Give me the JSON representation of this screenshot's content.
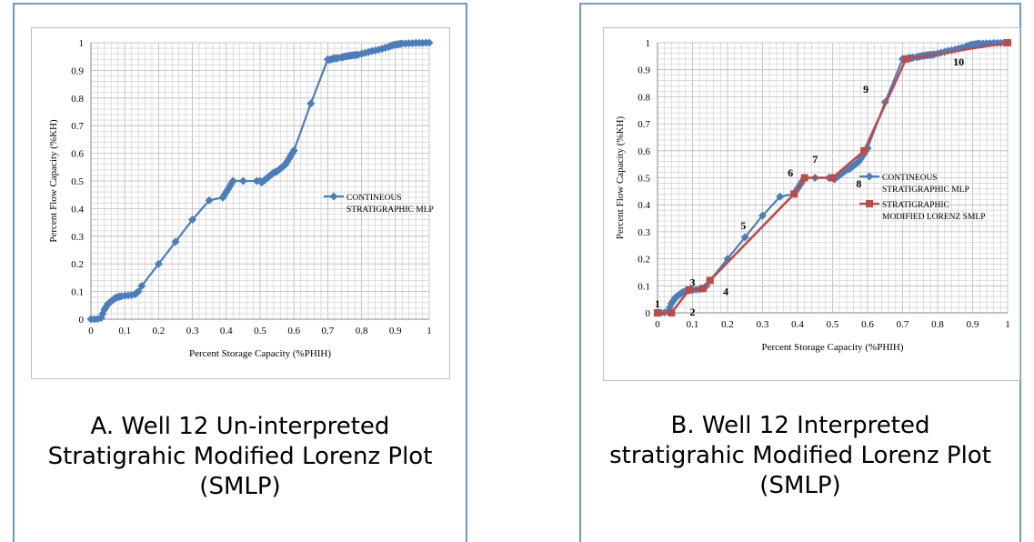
{
  "colors": {
    "frame": "#6a9bcb",
    "grid": "#c8c8c8",
    "blue_series": "#4a7ebb",
    "red_series": "#be4b48"
  },
  "panels": [
    {
      "caption_lines": [
        "A. Well 12 Un-interpreted",
        "Stratigrahic Modified Lorenz Plot",
        "(SMLP)"
      ]
    },
    {
      "caption_lines": [
        "B. Well 12 Interpreted",
        "stratigrahic Modified Lorenz Plot",
        "(SMLP)"
      ]
    }
  ],
  "chart_data": [
    {
      "type": "line",
      "xlabel": "Percent Storage Capacity (%PHIH)",
      "ylabel": "Percent Flow Capacity (%KH)",
      "xlim": [
        0,
        1
      ],
      "ylim": [
        0,
        1
      ],
      "x_ticks": [
        "0",
        "0.1",
        "0.2",
        "0.3",
        "0.4",
        "0.5",
        "0.6",
        "0.7",
        "0.8",
        "0.9",
        "1"
      ],
      "y_ticks": [
        "0",
        "0.1",
        "0.2",
        "0.3",
        "0.4",
        "0.5",
        "0.6",
        "0.7",
        "0.8",
        "0.9",
        "1"
      ],
      "grid": true,
      "legend_position": "right",
      "series": [
        {
          "name": "CONTINEOUS STRATIGRAPHIC MLP",
          "legend_lines": [
            "CONTINEOUS",
            "STRATIGRAPHIC MLP"
          ],
          "marker": "diamond",
          "x": [
            0,
            0.01,
            0.02,
            0.03,
            0.035,
            0.04,
            0.045,
            0.05,
            0.055,
            0.06,
            0.065,
            0.07,
            0.075,
            0.08,
            0.085,
            0.09,
            0.1,
            0.11,
            0.12,
            0.13,
            0.135,
            0.14,
            0.15,
            0.2,
            0.25,
            0.3,
            0.35,
            0.39,
            0.395,
            0.4,
            0.405,
            0.41,
            0.415,
            0.42,
            0.45,
            0.49,
            0.5,
            0.505,
            0.51,
            0.515,
            0.52,
            0.525,
            0.53,
            0.535,
            0.54,
            0.545,
            0.55,
            0.555,
            0.56,
            0.565,
            0.57,
            0.575,
            0.58,
            0.585,
            0.59,
            0.595,
            0.6,
            0.65,
            0.7,
            0.705,
            0.71,
            0.715,
            0.72,
            0.725,
            0.73,
            0.74,
            0.745,
            0.75,
            0.755,
            0.76,
            0.765,
            0.77,
            0.775,
            0.78,
            0.785,
            0.79,
            0.8,
            0.81,
            0.82,
            0.83,
            0.84,
            0.85,
            0.86,
            0.87,
            0.88,
            0.885,
            0.89,
            0.895,
            0.9,
            0.905,
            0.91,
            0.915,
            0.92,
            0.93,
            0.94,
            0.95,
            0.96,
            0.97,
            0.98,
            0.99,
            1.0
          ],
          "y": [
            0,
            0,
            0.001,
            0.005,
            0.02,
            0.035,
            0.045,
            0.055,
            0.06,
            0.065,
            0.07,
            0.075,
            0.078,
            0.08,
            0.082,
            0.083,
            0.085,
            0.086,
            0.087,
            0.09,
            0.095,
            0.1,
            0.12,
            0.2,
            0.28,
            0.36,
            0.43,
            0.44,
            0.45,
            0.46,
            0.47,
            0.48,
            0.49,
            0.5,
            0.5,
            0.5,
            0.5,
            0.495,
            0.5,
            0.505,
            0.51,
            0.515,
            0.52,
            0.525,
            0.53,
            0.532,
            0.535,
            0.54,
            0.545,
            0.55,
            0.555,
            0.56,
            0.57,
            0.58,
            0.59,
            0.6,
            0.61,
            0.78,
            0.94,
            0.938,
            0.94,
            0.942,
            0.944,
            0.943,
            0.945,
            0.947,
            0.948,
            0.95,
            0.951,
            0.952,
            0.953,
            0.954,
            0.955,
            0.955,
            0.956,
            0.957,
            0.96,
            0.963,
            0.966,
            0.97,
            0.972,
            0.975,
            0.978,
            0.982,
            0.985,
            0.988,
            0.99,
            0.992,
            0.993,
            0.994,
            0.995,
            0.996,
            0.997,
            0.997,
            0.998,
            0.998,
            0.999,
            0.999,
            0.999,
            1.0,
            1.0
          ],
          "color": "#4a7ebb"
        }
      ]
    },
    {
      "type": "line",
      "xlabel": "Percent Storage Capacity (%PHIH)",
      "ylabel": "Percent Flow Capacity (%KH)",
      "xlim": [
        0,
        1
      ],
      "ylim": [
        0,
        1
      ],
      "x_ticks": [
        "0",
        "0.1",
        "0.2",
        "0.3",
        "0.4",
        "0.5",
        "0.6",
        "0.7",
        "0.8",
        "0.9",
        "1"
      ],
      "y_ticks": [
        "0",
        "0.1",
        "0.2",
        "0.3",
        "0.4",
        "0.5",
        "0.6",
        "0.7",
        "0.8",
        "0.9",
        "1"
      ],
      "grid": true,
      "legend_position": "right",
      "series": [
        {
          "name": "CONTINEOUS STRATIGRAPHIC MLP",
          "legend_lines": [
            "CONTINEOUS",
            "STRATIGRAPHIC MLP"
          ],
          "marker": "diamond",
          "x": [
            0,
            0.01,
            0.02,
            0.03,
            0.035,
            0.04,
            0.045,
            0.05,
            0.055,
            0.06,
            0.065,
            0.07,
            0.075,
            0.08,
            0.085,
            0.09,
            0.1,
            0.11,
            0.12,
            0.13,
            0.135,
            0.14,
            0.15,
            0.2,
            0.25,
            0.3,
            0.35,
            0.39,
            0.395,
            0.4,
            0.405,
            0.41,
            0.415,
            0.42,
            0.45,
            0.49,
            0.5,
            0.505,
            0.51,
            0.515,
            0.52,
            0.525,
            0.53,
            0.535,
            0.54,
            0.545,
            0.55,
            0.555,
            0.56,
            0.565,
            0.57,
            0.575,
            0.58,
            0.585,
            0.59,
            0.595,
            0.6,
            0.65,
            0.7,
            0.705,
            0.71,
            0.715,
            0.72,
            0.725,
            0.73,
            0.74,
            0.745,
            0.75,
            0.755,
            0.76,
            0.765,
            0.77,
            0.775,
            0.78,
            0.785,
            0.79,
            0.8,
            0.81,
            0.82,
            0.83,
            0.84,
            0.85,
            0.86,
            0.87,
            0.88,
            0.885,
            0.89,
            0.895,
            0.9,
            0.905,
            0.91,
            0.915,
            0.92,
            0.93,
            0.94,
            0.95,
            0.96,
            0.97,
            0.98,
            0.99,
            1.0
          ],
          "y": [
            0,
            0,
            0.001,
            0.005,
            0.02,
            0.035,
            0.045,
            0.055,
            0.06,
            0.065,
            0.07,
            0.075,
            0.078,
            0.08,
            0.082,
            0.083,
            0.085,
            0.086,
            0.087,
            0.09,
            0.095,
            0.1,
            0.12,
            0.2,
            0.28,
            0.36,
            0.43,
            0.44,
            0.45,
            0.46,
            0.47,
            0.48,
            0.49,
            0.5,
            0.5,
            0.5,
            0.5,
            0.495,
            0.5,
            0.505,
            0.51,
            0.515,
            0.52,
            0.525,
            0.53,
            0.532,
            0.535,
            0.54,
            0.545,
            0.55,
            0.555,
            0.56,
            0.57,
            0.58,
            0.59,
            0.6,
            0.61,
            0.78,
            0.94,
            0.938,
            0.94,
            0.942,
            0.944,
            0.943,
            0.945,
            0.947,
            0.948,
            0.95,
            0.951,
            0.952,
            0.953,
            0.954,
            0.955,
            0.955,
            0.956,
            0.957,
            0.96,
            0.963,
            0.966,
            0.97,
            0.972,
            0.975,
            0.978,
            0.982,
            0.985,
            0.988,
            0.99,
            0.992,
            0.993,
            0.994,
            0.995,
            0.996,
            0.997,
            0.997,
            0.998,
            0.998,
            0.999,
            0.999,
            0.999,
            1.0,
            1.0
          ],
          "color": "#4a7ebb"
        },
        {
          "name": "STRATIGRAPHIC MODIFIED LORENZ SMLP",
          "legend_lines": [
            "STRATIGRAPHIC",
            "MODIFIED LORENZ SMLP"
          ],
          "marker": "square",
          "x": [
            0,
            0.04,
            0.09,
            0.13,
            0.15,
            0.39,
            0.42,
            0.5,
            0.59,
            0.71,
            1.0
          ],
          "y": [
            0,
            0,
            0.085,
            0.09,
            0.12,
            0.44,
            0.5,
            0.5,
            0.6,
            0.94,
            1.0
          ],
          "color": "#be4b48"
        }
      ],
      "annotations": [
        {
          "text": "1",
          "x": 0.0,
          "y": 0.02
        },
        {
          "text": "2",
          "x": 0.1,
          "y": -0.01
        },
        {
          "text": "3",
          "x": 0.1,
          "y": 0.1
        },
        {
          "text": "4",
          "x": 0.195,
          "y": 0.065
        },
        {
          "text": "5",
          "x": 0.245,
          "y": 0.31
        },
        {
          "text": "6",
          "x": 0.38,
          "y": 0.505
        },
        {
          "text": "7",
          "x": 0.45,
          "y": 0.555
        },
        {
          "text": "8",
          "x": 0.575,
          "y": 0.465
        },
        {
          "text": "9",
          "x": 0.595,
          "y": 0.815
        },
        {
          "text": "10",
          "x": 0.86,
          "y": 0.915
        }
      ]
    }
  ]
}
